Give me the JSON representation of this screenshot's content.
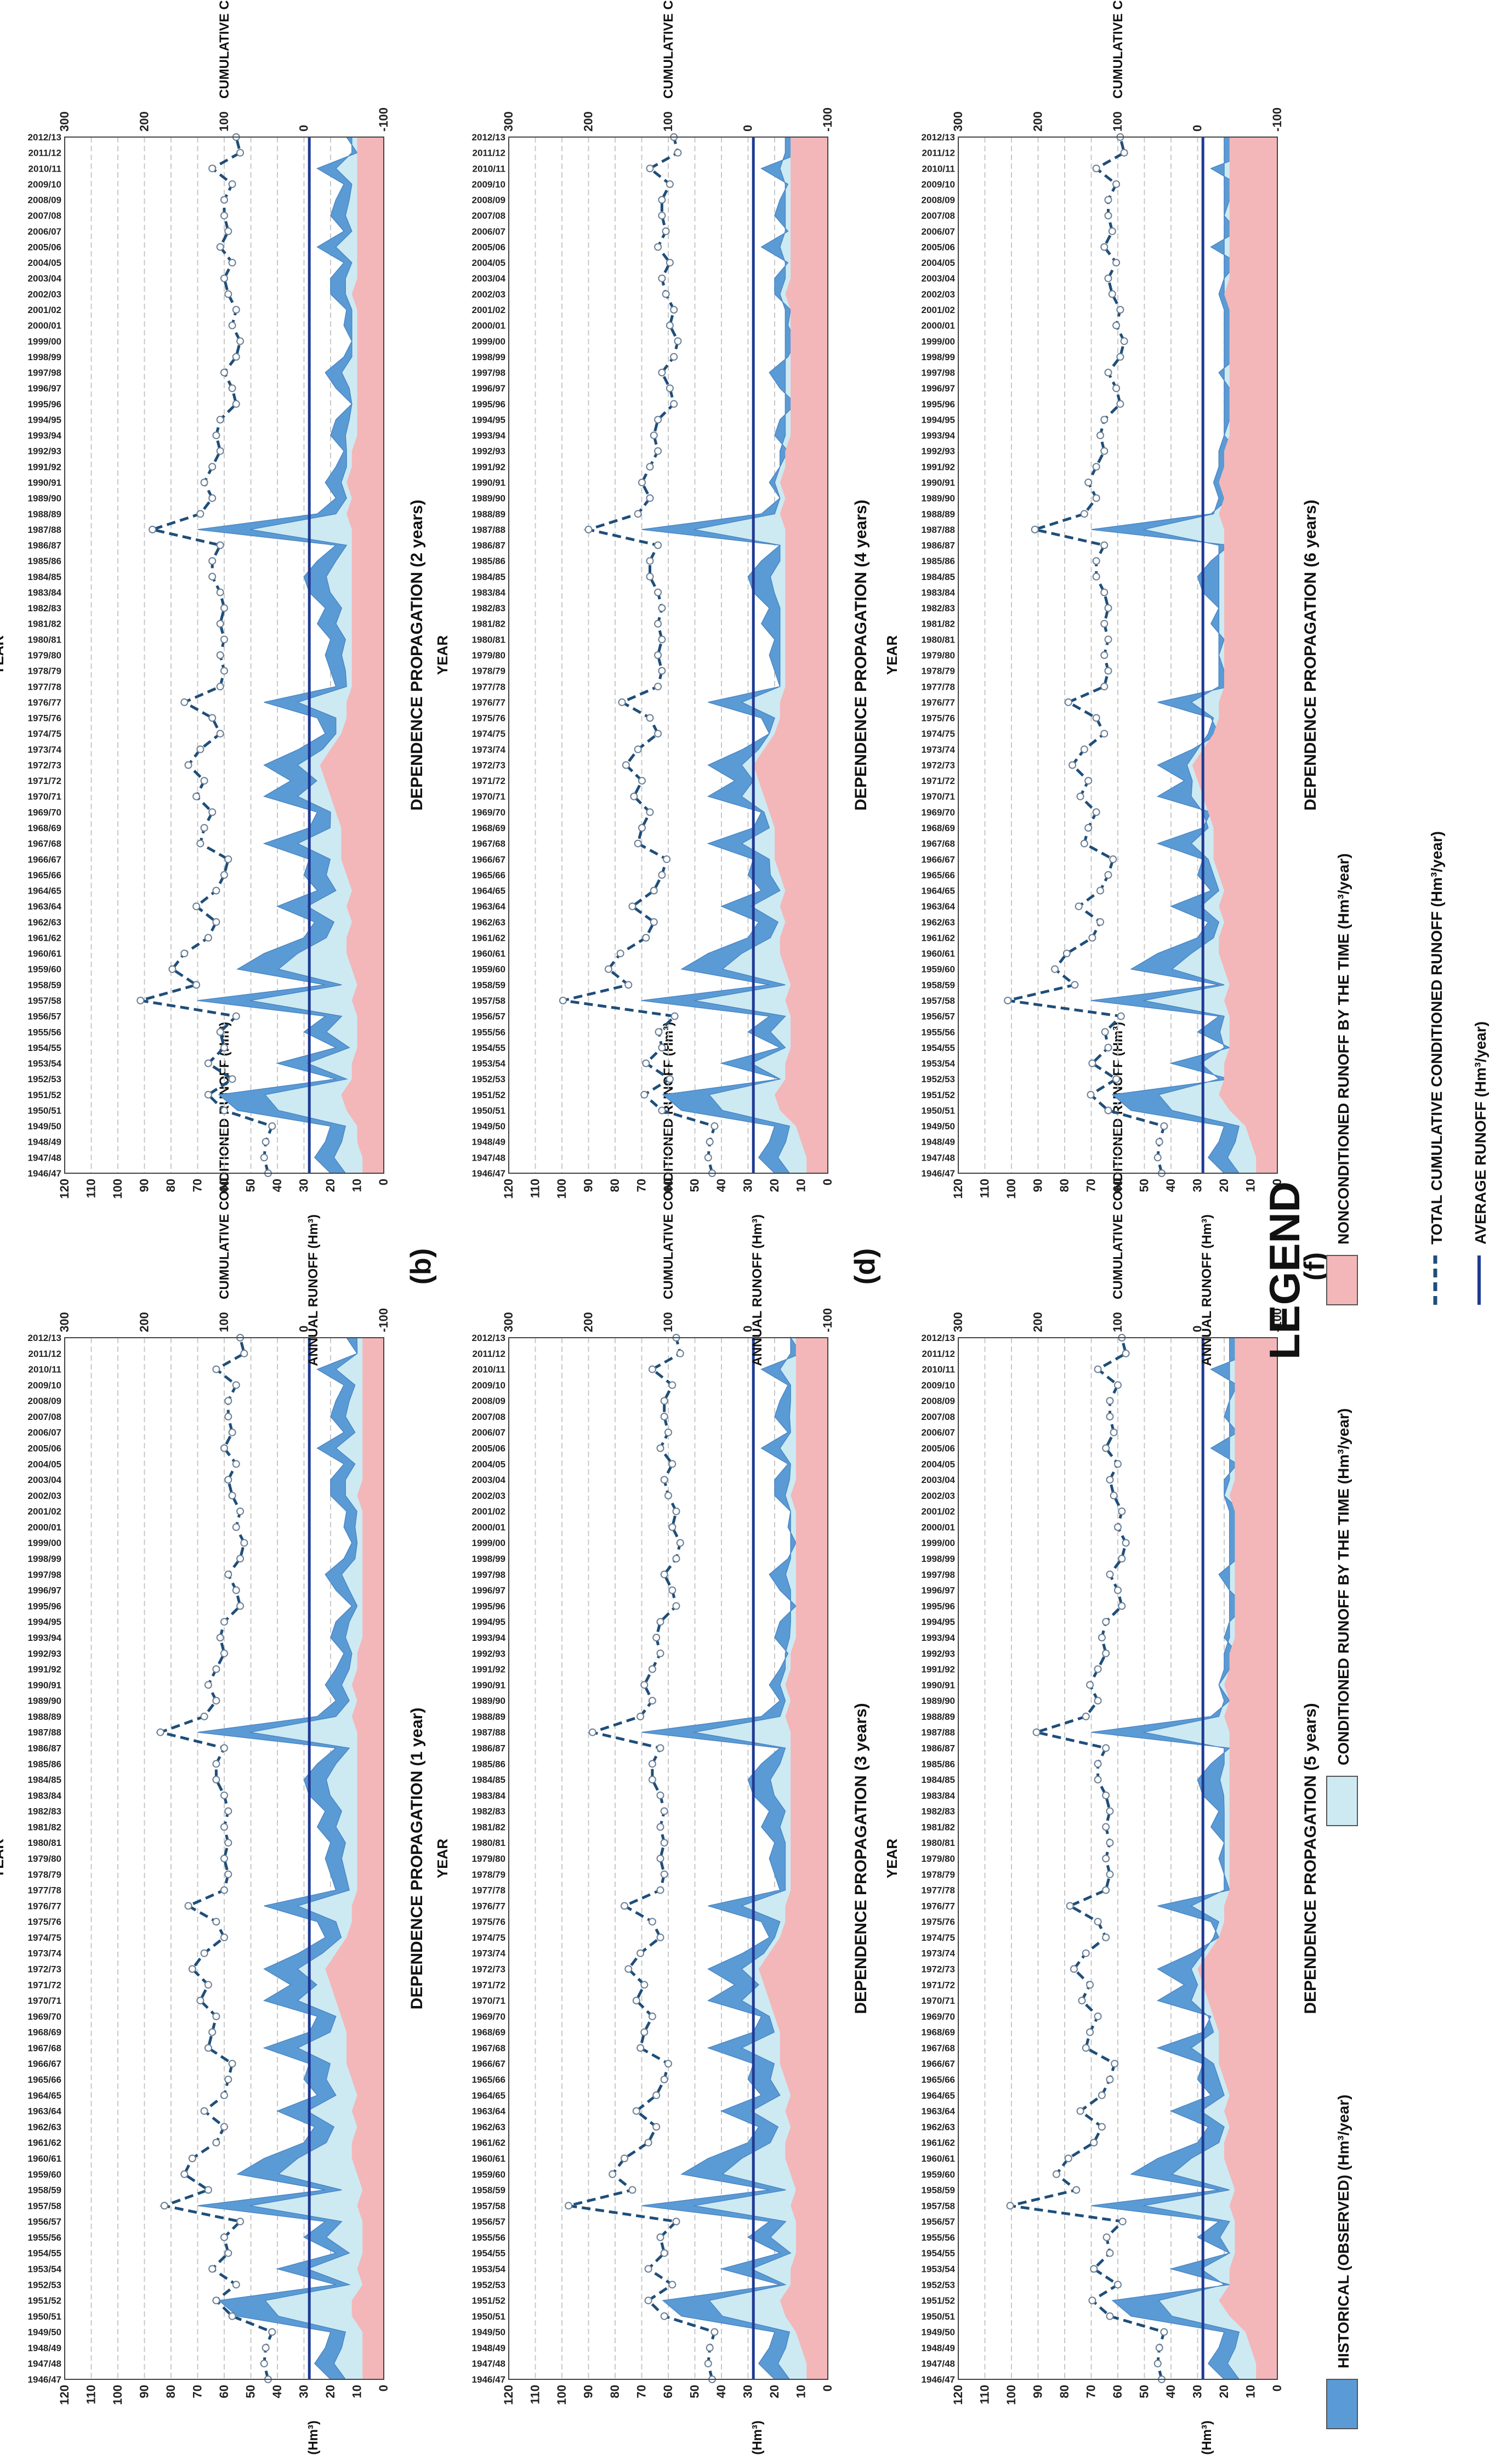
{
  "figure": {
    "axis_x_label": "YEAR",
    "axis_y_left_label": "ANNUAL RUNOFF (Hm³)",
    "axis_y_right_label": "CUMULATIVE CONDITIONED RUNOFF (Hm³)",
    "left_ticks": [
      "0",
      "10",
      "20",
      "30",
      "40",
      "50",
      "60",
      "70",
      "80",
      "90",
      "100",
      "110",
      "120"
    ],
    "right_ticks": [
      "-100",
      "0",
      "100",
      "200",
      "300"
    ],
    "colors": {
      "historical": "#5b9bd5",
      "conditioned": "#cdeaf3",
      "nonconditioned": "#f3b7b9",
      "cumulative": "#1f4e79",
      "average": "#1f3a93"
    }
  },
  "legend": {
    "title": "LEGEND",
    "items": [
      {
        "key": "historical",
        "label": "HISTORICAL (OBSERVED) (Hm³/year)"
      },
      {
        "key": "conditioned",
        "label": "CONDITIONED RUNOFF BY THE TIME (Hm³/year)"
      },
      {
        "key": "nonconditioned",
        "label": "NONCONDITIONED RUNOFF BY THE TIME (Hm³/year)"
      },
      {
        "key": "cumulative",
        "label": "TOTAL CUMULATIVE CONDITIONED RUNOFF (Hm³/year)"
      },
      {
        "key": "average",
        "label": "AVERAGE RUNOFF (Hm³/year)"
      }
    ]
  },
  "chart_data": {
    "type": "area",
    "x_categories": [
      "1946/47",
      "1947/48",
      "1948/49",
      "1949/50",
      "1950/51",
      "1951/52",
      "1952/53",
      "1953/54",
      "1954/55",
      "1955/56",
      "1956/57",
      "1957/58",
      "1958/59",
      "1959/60",
      "1960/61",
      "1961/62",
      "1962/63",
      "1963/64",
      "1964/65",
      "1965/66",
      "1966/67",
      "1967/68",
      "1968/69",
      "1969/70",
      "1970/71",
      "1971/72",
      "1972/73",
      "1973/74",
      "1974/75",
      "1975/76",
      "1976/77",
      "1977/78",
      "1978/79",
      "1979/80",
      "1980/81",
      "1981/82",
      "1982/83",
      "1983/84",
      "1984/85",
      "1985/86",
      "1986/87",
      "1987/88",
      "1988/89",
      "1989/90",
      "1990/91",
      "1991/92",
      "1992/93",
      "1993/94",
      "1994/95",
      "1995/96",
      "1996/97",
      "1997/98",
      "1998/99",
      "1999/00",
      "2000/01",
      "2001/02",
      "2002/03",
      "2003/04",
      "2004/05",
      "2005/06",
      "2006/07",
      "2007/08",
      "2008/09",
      "2009/10",
      "2010/11",
      "2011/12",
      "2012/13"
    ],
    "xlabel": "YEAR",
    "ylabel": "ANNUAL RUNOFF (Hm³)",
    "ylabel_right": "CUMULATIVE CONDITIONED RUNOFF (Hm³)",
    "ylim": [
      0,
      120
    ],
    "ylim_right": [
      -100,
      300
    ],
    "average_runoff": 28,
    "historical": [
      20,
      26,
      22,
      20,
      55,
      62,
      18,
      40,
      18,
      30,
      22,
      70,
      22,
      55,
      45,
      30,
      26,
      40,
      25,
      30,
      28,
      45,
      28,
      25,
      45,
      35,
      45,
      32,
      22,
      25,
      45,
      18,
      20,
      22,
      20,
      25,
      22,
      28,
      30,
      25,
      18,
      70,
      25,
      18,
      22,
      18,
      15,
      20,
      18,
      12,
      18,
      22,
      15,
      12,
      15,
      14,
      20,
      20,
      15,
      25,
      15,
      20,
      18,
      15,
      25,
      10,
      14
    ],
    "panels": [
      {
        "id": "a",
        "title": "DEPENDENCE PROPAGATION (1 year)",
        "nonconditioned": [
          8,
          8,
          8,
          8,
          12,
          12,
          8,
          10,
          8,
          8,
          8,
          10,
          8,
          10,
          12,
          12,
          10,
          12,
          10,
          12,
          14,
          14,
          14,
          16,
          18,
          20,
          22,
          18,
          14,
          12,
          12,
          10,
          10,
          10,
          10,
          10,
          10,
          10,
          10,
          10,
          10,
          10,
          12,
          10,
          12,
          10,
          10,
          8,
          8,
          8,
          8,
          8,
          8,
          8,
          8,
          8,
          10,
          8,
          8,
          8,
          8,
          8,
          8,
          8,
          8,
          8,
          8
        ],
        "cumulative": [
          45,
          50,
          48,
          40,
          90,
          110,
          85,
          115,
          95,
          100,
          80,
          175,
          120,
          150,
          140,
          110,
          100,
          125,
          100,
          95,
          90,
          120,
          115,
          110,
          130,
          120,
          140,
          125,
          100,
          110,
          145,
          100,
          95,
          100,
          95,
          100,
          95,
          100,
          110,
          110,
          100,
          180,
          125,
          110,
          120,
          110,
          100,
          105,
          100,
          80,
          85,
          95,
          80,
          75,
          85,
          80,
          90,
          95,
          85,
          100,
          90,
          95,
          95,
          85,
          110,
          75,
          80
        ]
      },
      {
        "id": "b",
        "title": "DEPENDENCE PROPAGATION (2 years)",
        "nonconditioned": [
          8,
          8,
          10,
          10,
          14,
          16,
          12,
          12,
          10,
          10,
          10,
          12,
          10,
          12,
          14,
          14,
          12,
          14,
          12,
          14,
          16,
          16,
          16,
          18,
          20,
          22,
          24,
          20,
          16,
          14,
          14,
          12,
          12,
          12,
          12,
          12,
          12,
          12,
          12,
          12,
          12,
          12,
          14,
          12,
          14,
          12,
          12,
          10,
          10,
          10,
          10,
          10,
          10,
          10,
          10,
          10,
          12,
          10,
          10,
          10,
          10,
          10,
          10,
          10,
          10,
          10,
          10
        ],
        "cumulative": [
          45,
          50,
          48,
          40,
          100,
          120,
          90,
          120,
          100,
          105,
          85,
          205,
          135,
          165,
          150,
          120,
          110,
          135,
          110,
          100,
          95,
          130,
          125,
          115,
          135,
          125,
          145,
          130,
          105,
          115,
          150,
          105,
          100,
          105,
          100,
          105,
          100,
          105,
          115,
          115,
          105,
          190,
          130,
          115,
          125,
          115,
          105,
          110,
          105,
          85,
          90,
          100,
          85,
          80,
          90,
          85,
          95,
          100,
          90,
          105,
          95,
          100,
          100,
          90,
          115,
          80,
          85
        ]
      },
      {
        "id": "c",
        "title": "DEPENDENCE PROPAGATION (3 years)",
        "nonconditioned": [
          8,
          8,
          10,
          12,
          16,
          18,
          14,
          14,
          12,
          12,
          12,
          14,
          12,
          14,
          16,
          16,
          14,
          16,
          14,
          16,
          18,
          18,
          18,
          20,
          22,
          24,
          26,
          22,
          18,
          16,
          16,
          14,
          14,
          14,
          14,
          14,
          14,
          14,
          14,
          14,
          14,
          14,
          16,
          14,
          16,
          14,
          14,
          12,
          12,
          12,
          12,
          12,
          12,
          12,
          12,
          12,
          14,
          12,
          12,
          12,
          12,
          12,
          12,
          12,
          12,
          12,
          12
        ],
        "cumulative": [
          45,
          50,
          48,
          42,
          105,
          125,
          95,
          125,
          105,
          110,
          90,
          225,
          145,
          170,
          155,
          125,
          115,
          140,
          115,
          105,
          100,
          135,
          130,
          120,
          140,
          130,
          150,
          135,
          110,
          120,
          155,
          110,
          105,
          110,
          105,
          110,
          105,
          110,
          120,
          120,
          110,
          195,
          135,
          120,
          130,
          120,
          110,
          115,
          110,
          90,
          95,
          105,
          90,
          85,
          95,
          90,
          100,
          105,
          95,
          110,
          100,
          105,
          105,
          95,
          120,
          85,
          90
        ]
      },
      {
        "id": "d",
        "title": "DEPENDENCE PROPAGATION (4 years)",
        "nonconditioned": [
          8,
          8,
          10,
          12,
          18,
          20,
          16,
          16,
          14,
          14,
          14,
          16,
          14,
          16,
          18,
          18,
          16,
          18,
          16,
          18,
          20,
          20,
          20,
          22,
          24,
          26,
          28,
          24,
          20,
          18,
          18,
          16,
          16,
          16,
          16,
          16,
          16,
          16,
          16,
          16,
          16,
          16,
          18,
          16,
          18,
          16,
          16,
          14,
          14,
          14,
          14,
          14,
          14,
          14,
          14,
          14,
          16,
          14,
          14,
          14,
          14,
          14,
          14,
          14,
          14,
          14,
          14
        ],
        "cumulative": [
          45,
          50,
          48,
          42,
          108,
          130,
          98,
          128,
          108,
          112,
          92,
          232,
          150,
          175,
          160,
          128,
          118,
          145,
          118,
          108,
          102,
          138,
          133,
          123,
          143,
          133,
          153,
          138,
          113,
          123,
          158,
          113,
          108,
          113,
          108,
          113,
          108,
          113,
          123,
          123,
          113,
          200,
          138,
          123,
          133,
          123,
          113,
          118,
          113,
          93,
          98,
          108,
          93,
          88,
          98,
          93,
          103,
          108,
          98,
          113,
          103,
          108,
          108,
          98,
          123,
          88,
          93
        ]
      },
      {
        "id": "e",
        "title": "DEPENDENCE PROPAGATION (5 years)",
        "nonconditioned": [
          8,
          8,
          10,
          12,
          18,
          22,
          18,
          18,
          16,
          16,
          16,
          18,
          16,
          18,
          20,
          20,
          18,
          20,
          18,
          20,
          22,
          22,
          22,
          24,
          26,
          28,
          30,
          26,
          22,
          20,
          20,
          18,
          18,
          18,
          18,
          18,
          18,
          18,
          18,
          18,
          18,
          18,
          20,
          18,
          20,
          18,
          18,
          16,
          16,
          16,
          16,
          16,
          16,
          16,
          16,
          16,
          18,
          16,
          16,
          16,
          16,
          16,
          16,
          16,
          16,
          16,
          16
        ],
        "cumulative": [
          45,
          50,
          48,
          42,
          110,
          132,
          100,
          130,
          110,
          114,
          94,
          235,
          152,
          177,
          162,
          130,
          120,
          147,
          120,
          110,
          104,
          140,
          135,
          125,
          145,
          135,
          155,
          140,
          115,
          125,
          160,
          115,
          110,
          115,
          110,
          115,
          110,
          115,
          125,
          125,
          115,
          202,
          140,
          125,
          135,
          125,
          115,
          120,
          115,
          95,
          100,
          110,
          95,
          90,
          100,
          95,
          105,
          110,
          100,
          115,
          105,
          110,
          110,
          100,
          125,
          90,
          95
        ]
      },
      {
        "id": "f",
        "title": "DEPENDENCE PROPAGATION (6 years)",
        "nonconditioned": [
          8,
          8,
          10,
          12,
          18,
          22,
          20,
          20,
          18,
          18,
          18,
          20,
          18,
          20,
          22,
          22,
          20,
          22,
          20,
          22,
          24,
          24,
          24,
          26,
          28,
          30,
          32,
          28,
          24,
          22,
          22,
          20,
          20,
          20,
          20,
          20,
          20,
          20,
          20,
          20,
          20,
          20,
          22,
          20,
          22,
          20,
          20,
          18,
          18,
          18,
          18,
          18,
          18,
          18,
          18,
          18,
          20,
          18,
          18,
          18,
          18,
          18,
          18,
          18,
          18,
          18,
          18
        ],
        "cumulative": [
          45,
          50,
          48,
          42,
          112,
          134,
          102,
          132,
          112,
          116,
          96,
          238,
          154,
          179,
          164,
          132,
          122,
          149,
          122,
          112,
          106,
          142,
          137,
          127,
          147,
          137,
          157,
          142,
          117,
          127,
          162,
          117,
          112,
          117,
          112,
          117,
          112,
          117,
          127,
          127,
          117,
          204,
          142,
          127,
          137,
          127,
          117,
          122,
          117,
          97,
          102,
          112,
          97,
          92,
          102,
          97,
          107,
          112,
          102,
          117,
          107,
          112,
          112,
          102,
          127,
          92,
          97
        ]
      }
    ]
  }
}
